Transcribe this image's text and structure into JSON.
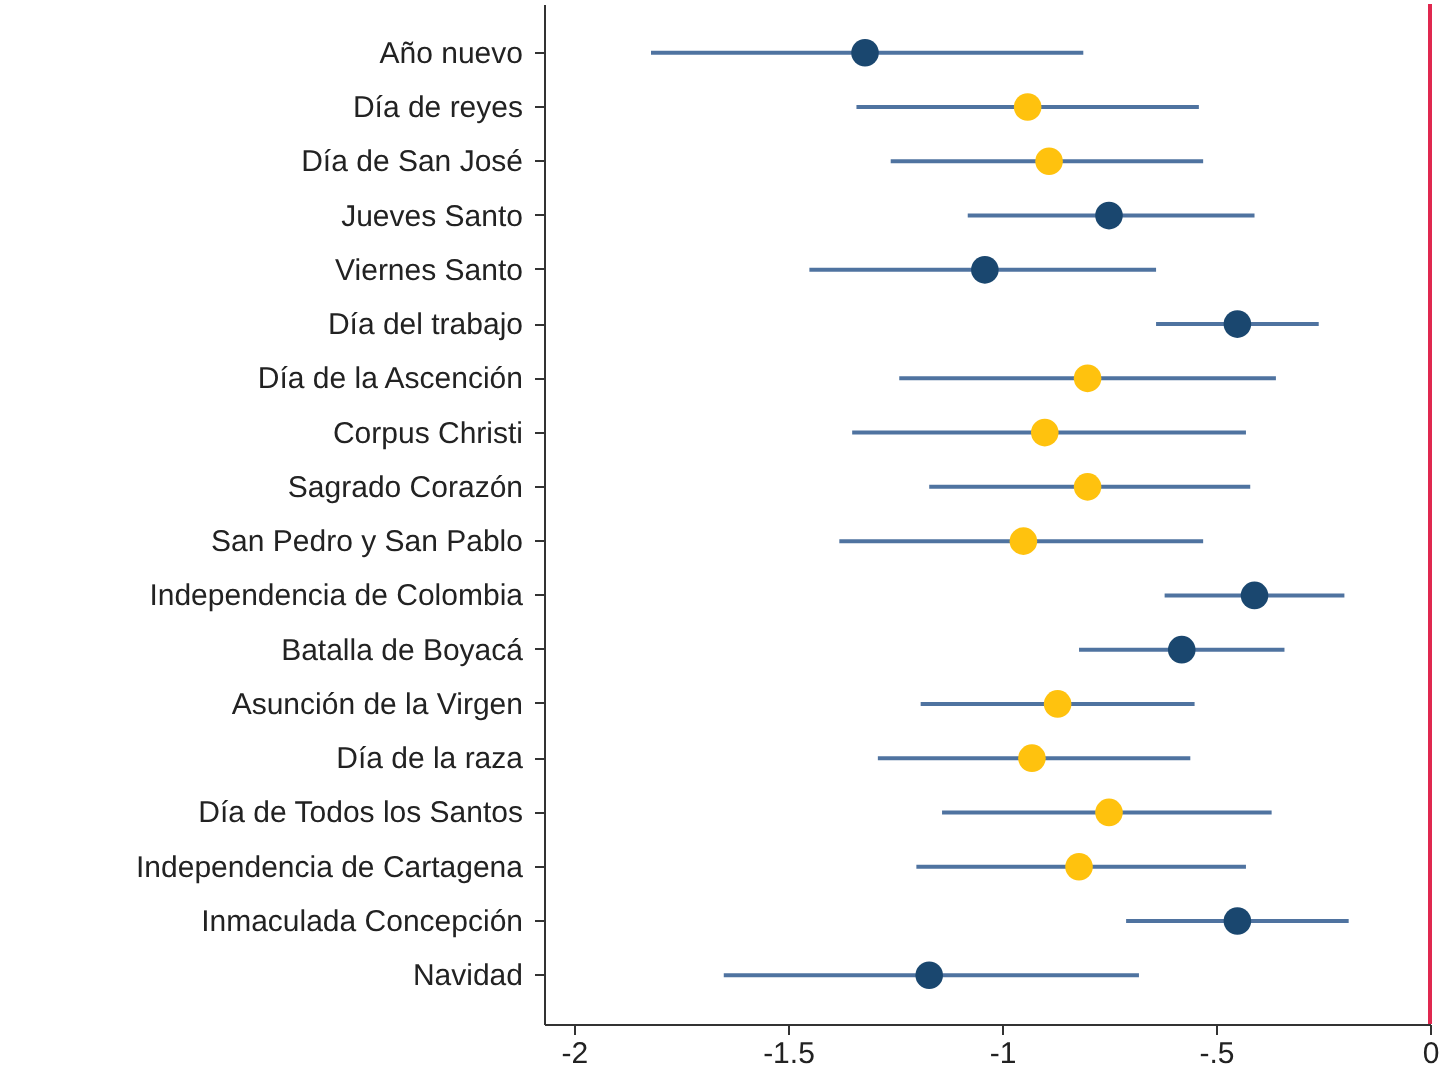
{
  "chart_data": {
    "type": "scatter",
    "orientation": "horizontal",
    "categories": [
      "Año nuevo",
      "Día de reyes",
      "Día de San José",
      "Jueves Santo",
      "Viernes Santo",
      "Día del trabajo",
      "Día de la Ascención",
      "Corpus Christi",
      "Sagrado Corazón",
      "San Pedro y San Pablo",
      "Independencia de Colombia",
      "Batalla de Boyacá",
      "Asunción de la Virgen",
      "Día de la raza",
      "Día de Todos los Santos",
      "Independencia de Cartagena",
      "Inmaculada Concepción",
      "Navidad"
    ],
    "series": [
      {
        "color": "#1a476f",
        "values": [
          -1.32,
          null,
          null,
          -0.75,
          -1.04,
          -0.45,
          null,
          null,
          null,
          null,
          -0.41,
          -0.58,
          null,
          null,
          null,
          null,
          -0.45,
          -1.17
        ],
        "errors": [
          [
            -1.82,
            -0.81
          ],
          null,
          null,
          [
            -1.08,
            -0.41
          ],
          [
            -1.45,
            -0.64
          ],
          [
            -0.64,
            -0.26
          ],
          null,
          null,
          null,
          null,
          [
            -0.62,
            -0.2
          ],
          [
            -0.82,
            -0.34
          ],
          null,
          null,
          null,
          null,
          [
            -0.71,
            -0.19
          ],
          [
            -1.65,
            -0.68
          ]
        ]
      },
      {
        "color": "#ffc20e",
        "values": [
          null,
          -0.94,
          -0.89,
          null,
          null,
          null,
          -0.8,
          -0.9,
          -0.8,
          -0.95,
          null,
          null,
          -0.87,
          -0.93,
          -0.75,
          -0.82,
          null,
          null
        ],
        "errors": [
          null,
          [
            -1.34,
            -0.54
          ],
          [
            -1.26,
            -0.53
          ],
          null,
          null,
          null,
          [
            -1.24,
            -0.36
          ],
          [
            -1.35,
            -0.43
          ],
          [
            -1.17,
            -0.42
          ],
          [
            -1.38,
            -0.53
          ],
          null,
          null,
          [
            -1.19,
            -0.55
          ],
          [
            -1.29,
            -0.56
          ],
          [
            -1.14,
            -0.37
          ],
          [
            -1.2,
            -0.43
          ],
          null,
          null
        ]
      }
    ],
    "xlim": [
      -2.07,
      0
    ],
    "xticks": [
      -2,
      -1.5,
      -1,
      {
        "value": -0.5,
        "label": "-.5"
      },
      0
    ],
    "ref_lines": [
      {
        "axis": "x",
        "value": 0,
        "color": "#e0284f"
      }
    ],
    "grid": false,
    "marker": "circle"
  }
}
